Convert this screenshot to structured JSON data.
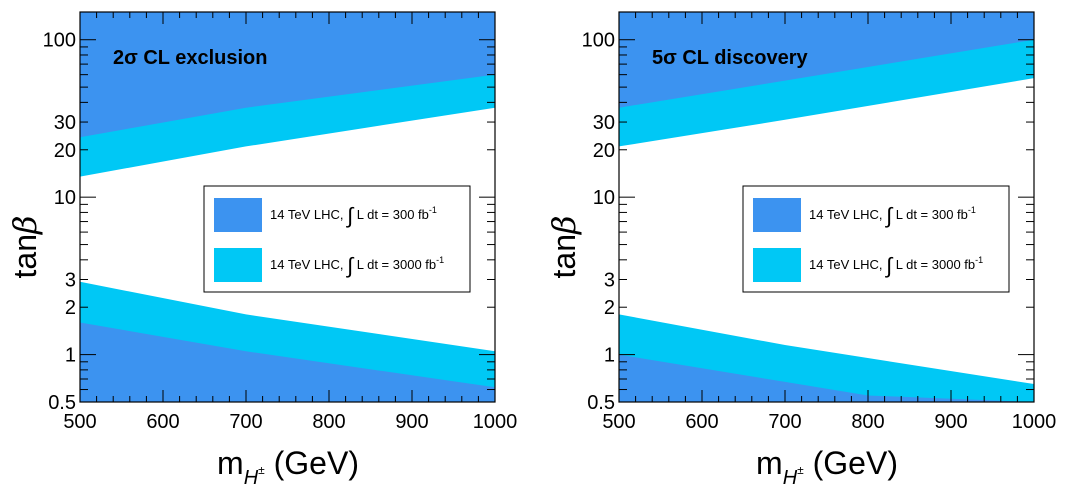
{
  "colors": {
    "band_300": "#3c93f0",
    "band_3000": "#00c8f5"
  },
  "chart_data": [
    {
      "type": "area",
      "title": "2σ CL exclusion",
      "xlabel": "m_{H±} (GeV)",
      "ylabel": "tanβ",
      "xlim": [
        500,
        1000
      ],
      "ylim": [
        0.5,
        150
      ],
      "yscale": "log",
      "xticks": [
        500,
        600,
        700,
        800,
        900,
        1000
      ],
      "yticks": [
        0.5,
        1,
        2,
        3,
        10,
        20,
        30,
        100
      ],
      "xtick_labels": [
        "500",
        "600",
        "700",
        "800",
        "900",
        "1000"
      ],
      "ytick_labels": [
        "0.5",
        "1",
        "2",
        "3",
        "10",
        "20",
        "30",
        "100"
      ],
      "series": [
        {
          "name": "14 TeV LHC, ∫ L dt = 300 fb-1",
          "color_key": "band_300",
          "upper": {
            "x": [
              500,
              700,
              1000
            ],
            "y": [
              24,
              37,
              60
            ]
          },
          "lower": {
            "x": [
              500,
              700,
              1000
            ],
            "y": [
              1.6,
              1.05,
              0.62
            ]
          }
        },
        {
          "name": "14 TeV LHC, ∫ L dt = 3000 fb-1",
          "color_key": "band_3000",
          "upper": {
            "x": [
              500,
              700,
              1000
            ],
            "y": [
              13.5,
              21,
              37
            ]
          },
          "lower": {
            "x": [
              500,
              700,
              1000
            ],
            "y": [
              2.9,
              1.8,
              1.05
            ]
          }
        }
      ],
      "legend": {
        "position": "center-right",
        "items": [
          {
            "label": "14 TeV LHC, ∫ L dt = 300 fb",
            "sup": "-1",
            "color_key": "band_300"
          },
          {
            "label": "14 TeV LHC, ∫ L dt = 3000 fb",
            "sup": "-1",
            "color_key": "band_3000"
          }
        ]
      }
    },
    {
      "type": "area",
      "title": "5σ CL discovery",
      "xlabel": "m_{H±} (GeV)",
      "ylabel": "tanβ",
      "xlim": [
        500,
        1000
      ],
      "ylim": [
        0.5,
        150
      ],
      "yscale": "log",
      "xticks": [
        500,
        600,
        700,
        800,
        900,
        1000
      ],
      "yticks": [
        0.5,
        1,
        2,
        3,
        10,
        20,
        30,
        100
      ],
      "xtick_labels": [
        "500",
        "600",
        "700",
        "800",
        "900",
        "1000"
      ],
      "ytick_labels": [
        "0.5",
        "1",
        "2",
        "3",
        "10",
        "20",
        "30",
        "100"
      ],
      "series": [
        {
          "name": "14 TeV LHC, ∫ L dt = 300 fb-1",
          "color_key": "band_300",
          "upper": {
            "x": [
              500,
              700,
              1000
            ],
            "y": [
              37,
              55,
              100
            ]
          },
          "lower": {
            "x": [
              500,
              800,
              1000
            ],
            "y": [
              1.0,
              0.55,
              0.5
            ]
          }
        },
        {
          "name": "14 TeV LHC, ∫ L dt = 3000 fb-1",
          "color_key": "band_3000",
          "upper": {
            "x": [
              500,
              700,
              1000
            ],
            "y": [
              21,
              31,
              57
            ]
          },
          "lower": {
            "x": [
              500,
              700,
              1000
            ],
            "y": [
              1.8,
              1.15,
              0.65
            ]
          }
        }
      ],
      "legend": {
        "position": "center-right",
        "items": [
          {
            "label": "14 TeV LHC, ∫ L dt = 300 fb",
            "sup": "-1",
            "color_key": "band_300"
          },
          {
            "label": "14 TeV LHC, ∫ L dt = 3000 fb",
            "sup": "-1",
            "color_key": "band_3000"
          }
        ]
      }
    }
  ],
  "axis_text": {
    "ylabel_main": "tan",
    "ylabel_greek": "β",
    "xlabel_main": "m",
    "xlabel_sub": "H",
    "xlabel_sup": "±",
    "xlabel_unit": " (GeV)"
  }
}
